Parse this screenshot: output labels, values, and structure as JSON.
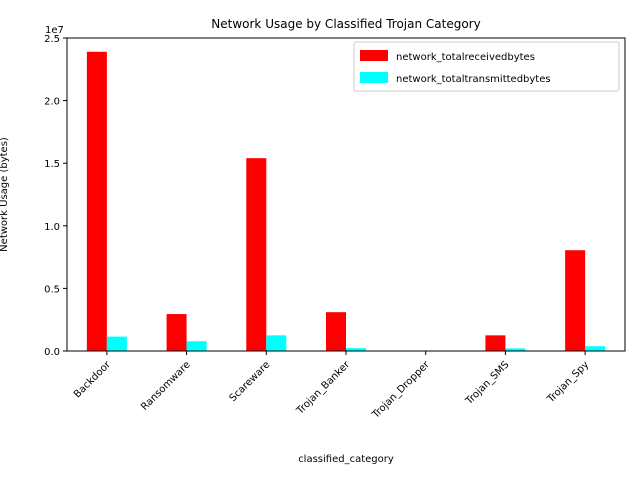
{
  "chart_data": {
    "type": "bar",
    "title": "Network Usage by Classified Trojan Category",
    "xlabel": "classified_category",
    "ylabel": "Network Usage (bytes)",
    "y_offset_label": "1e7",
    "ylim": [
      0,
      25000000
    ],
    "y_ticks": [
      0,
      5000000,
      10000000,
      15000000,
      20000000,
      25000000
    ],
    "y_tick_labels": [
      "0.0",
      "0.5",
      "1.0",
      "1.5",
      "2.0",
      "2.5"
    ],
    "categories": [
      "Backdoor",
      "Ransomware",
      "Scareware",
      "Trojan_Banker",
      "Trojan_Dropper",
      "Trojan_SMS",
      "Trojan_Spy"
    ],
    "series": [
      {
        "name": "network_totalreceivedbytes",
        "color": "#ff0000",
        "values": [
          23900000,
          2950000,
          15400000,
          3100000,
          0,
          1250000,
          8050000
        ]
      },
      {
        "name": "network_totaltransmittedbytes",
        "color": "#00ffff",
        "values": [
          1150000,
          780000,
          1250000,
          230000,
          0,
          210000,
          380000
        ]
      }
    ],
    "grid": false,
    "legend_position": "top-right"
  }
}
